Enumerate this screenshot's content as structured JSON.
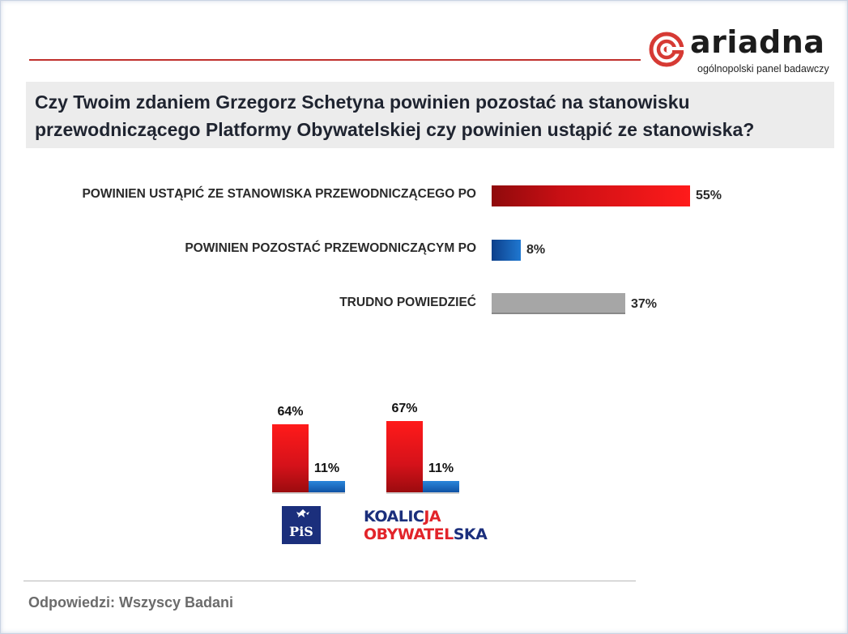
{
  "logo": {
    "brand": "ariadna",
    "tagline": "ogólnopolski panel badawczy"
  },
  "question": {
    "line1": "Czy Twoim zdaniem Grzegorz Schetyna powinien pozostać na stanowisku",
    "line2": "przewodniczącego Platformy Obywatelskiej czy powinien ustąpić ze stanowiska?"
  },
  "colors": {
    "red": "#e5161b",
    "blue": "#1565c0",
    "gray": "#a6a6a6",
    "accent": "#c0302c",
    "navy": "#1b2f7c"
  },
  "chart_data": [
    {
      "type": "bar",
      "orientation": "horizontal",
      "categories": [
        "POWINIEN USTĄPIĆ ZE STANOWISKA  PRZEWODNICZĄCEGO PO",
        "POWINIEN POZOSTAĆ PRZEWODNICZĄCYM PO",
        "TRUDNO POWIEDZIEĆ"
      ],
      "values": [
        55,
        8,
        37
      ],
      "value_labels": [
        "55%",
        "8%",
        "37%"
      ],
      "series_colors": [
        "red",
        "blue",
        "gray"
      ],
      "grid": false
    },
    {
      "type": "bar",
      "orientation": "vertical",
      "groups": [
        "PiS",
        "KOALICJA OBYWATELSKA"
      ],
      "series": [
        {
          "values": [
            64,
            67
          ],
          "value_labels": [
            "64%",
            "67%"
          ],
          "color": "red"
        },
        {
          "values": [
            11,
            11
          ],
          "value_labels": [
            "11%",
            "11%"
          ],
          "color": "blue"
        }
      ],
      "grid": false
    }
  ],
  "parties": {
    "pis": "PiS",
    "ko_line1_a": "KOALIC",
    "ko_line1_b": "JA",
    "ko_line2_a": "OBYWATEL",
    "ko_line2_b": "SKA"
  },
  "footer": "Odpowiedzi: Wszyscy Badani"
}
